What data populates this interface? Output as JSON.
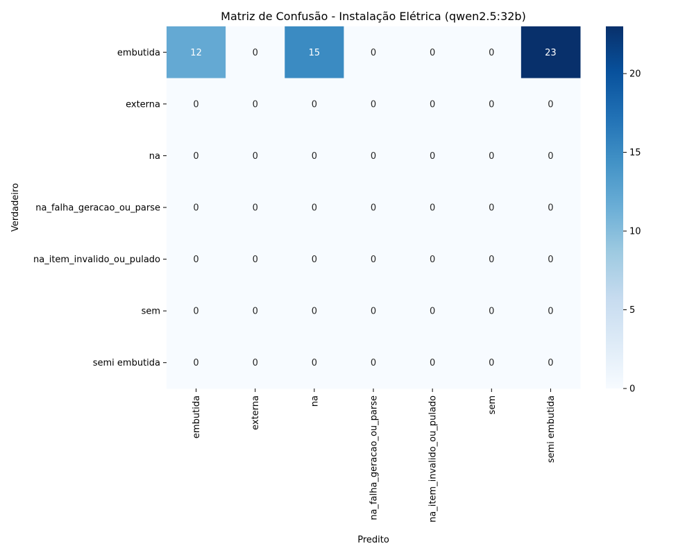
{
  "chart_data": {
    "type": "heatmap",
    "title": "Matriz de Confusão - Instalação Elétrica (qwen2.5:32b)",
    "xlabel": "Predito",
    "ylabel": "Verdadeiro",
    "x_categories": [
      "embutida",
      "externa",
      "na",
      "na_falha_geracao_ou_parse",
      "na_item_invalido_ou_pulado",
      "sem",
      "semi embutida"
    ],
    "y_categories": [
      "embutida",
      "externa",
      "na",
      "na_falha_geracao_ou_parse",
      "na_item_invalido_ou_pulado",
      "sem",
      "semi embutida"
    ],
    "values": [
      [
        12,
        0,
        15,
        0,
        0,
        0,
        23
      ],
      [
        0,
        0,
        0,
        0,
        0,
        0,
        0
      ],
      [
        0,
        0,
        0,
        0,
        0,
        0,
        0
      ],
      [
        0,
        0,
        0,
        0,
        0,
        0,
        0
      ],
      [
        0,
        0,
        0,
        0,
        0,
        0,
        0
      ],
      [
        0,
        0,
        0,
        0,
        0,
        0,
        0
      ],
      [
        0,
        0,
        0,
        0,
        0,
        0,
        0
      ]
    ],
    "colorbar": {
      "min": 0,
      "max": 23,
      "ticks": [
        0,
        5,
        10,
        15,
        20
      ],
      "colormap": "Blues"
    }
  }
}
